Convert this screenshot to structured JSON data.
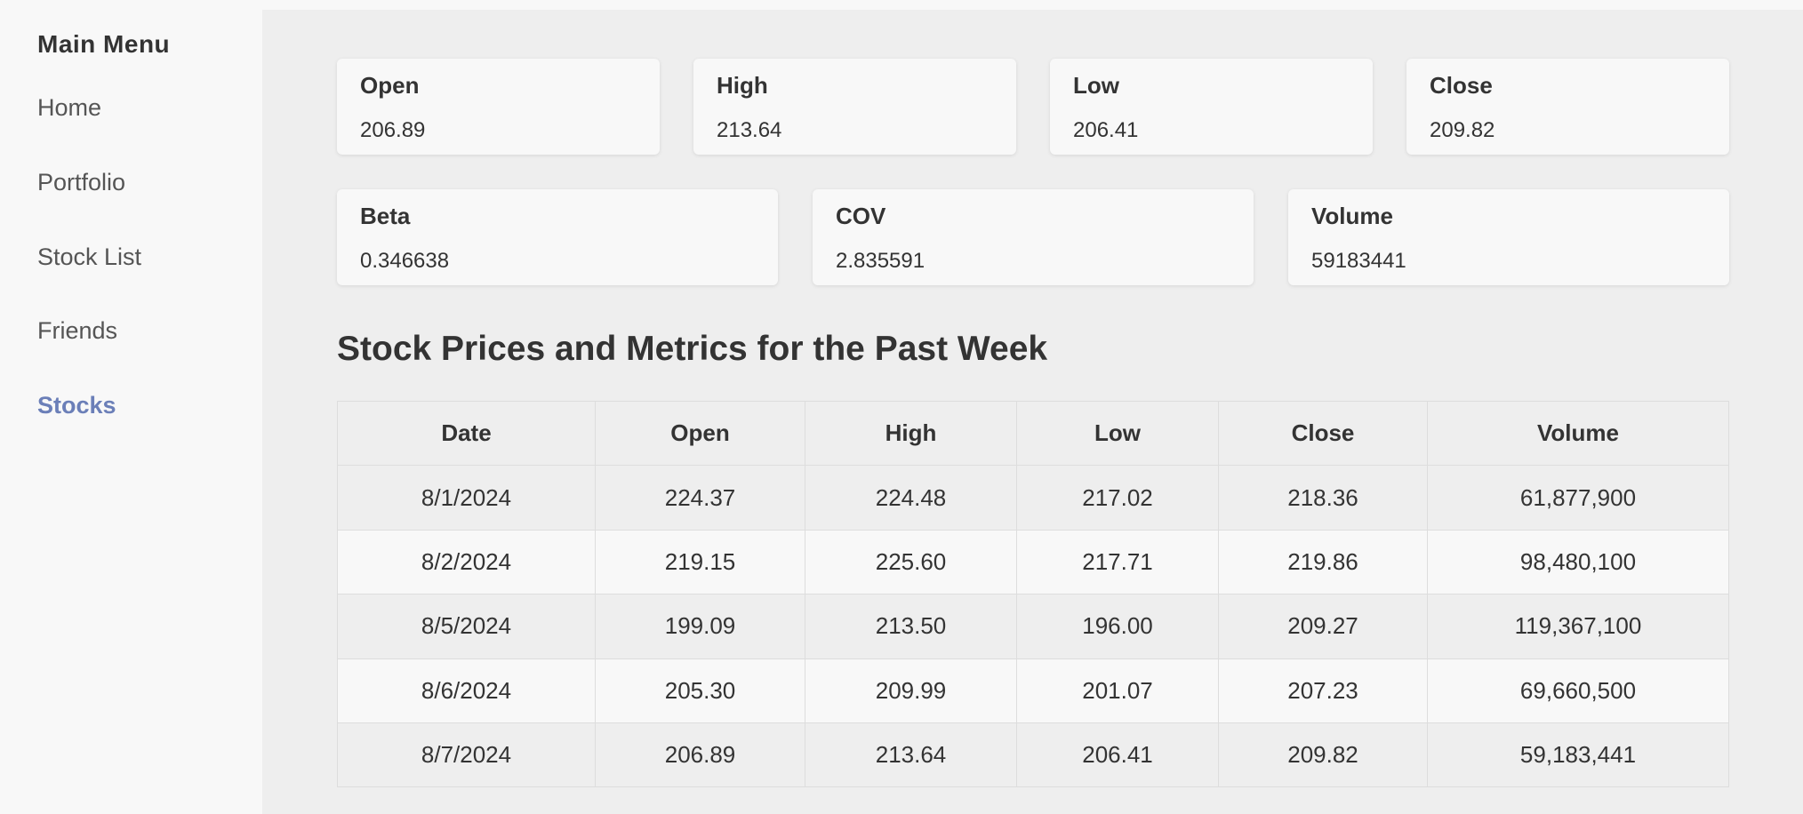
{
  "sidebar": {
    "title": "Main Menu",
    "items": [
      {
        "label": "Home"
      },
      {
        "label": "Portfolio"
      },
      {
        "label": "Stock List"
      },
      {
        "label": "Friends"
      },
      {
        "label": "Stocks",
        "active": true
      }
    ],
    "accent_color": "#6b7fb8"
  },
  "metrics": {
    "open": {
      "label": "Open",
      "value": "206.89"
    },
    "high": {
      "label": "High",
      "value": "213.64"
    },
    "low": {
      "label": "Low",
      "value": "206.41"
    },
    "close": {
      "label": "Close",
      "value": "209.82"
    },
    "beta": {
      "label": "Beta",
      "value": "0.346638"
    },
    "cov": {
      "label": "COV",
      "value": "2.835591"
    },
    "volume": {
      "label": "Volume",
      "value": "59183441"
    }
  },
  "table": {
    "title": "Stock Prices and Metrics for the Past Week",
    "headers": [
      "Date",
      "Open",
      "High",
      "Low",
      "Close",
      "Volume"
    ],
    "rows": [
      [
        "8/1/2024",
        "224.37",
        "224.48",
        "217.02",
        "218.36",
        "61,877,900"
      ],
      [
        "8/2/2024",
        "219.15",
        "225.60",
        "217.71",
        "219.86",
        "98,480,100"
      ],
      [
        "8/5/2024",
        "199.09",
        "213.50",
        "196.00",
        "209.27",
        "119,367,100"
      ],
      [
        "8/6/2024",
        "205.30",
        "209.99",
        "201.07",
        "207.23",
        "69,660,500"
      ],
      [
        "8/7/2024",
        "206.89",
        "213.64",
        "206.41",
        "209.82",
        "59,183,441"
      ]
    ]
  }
}
